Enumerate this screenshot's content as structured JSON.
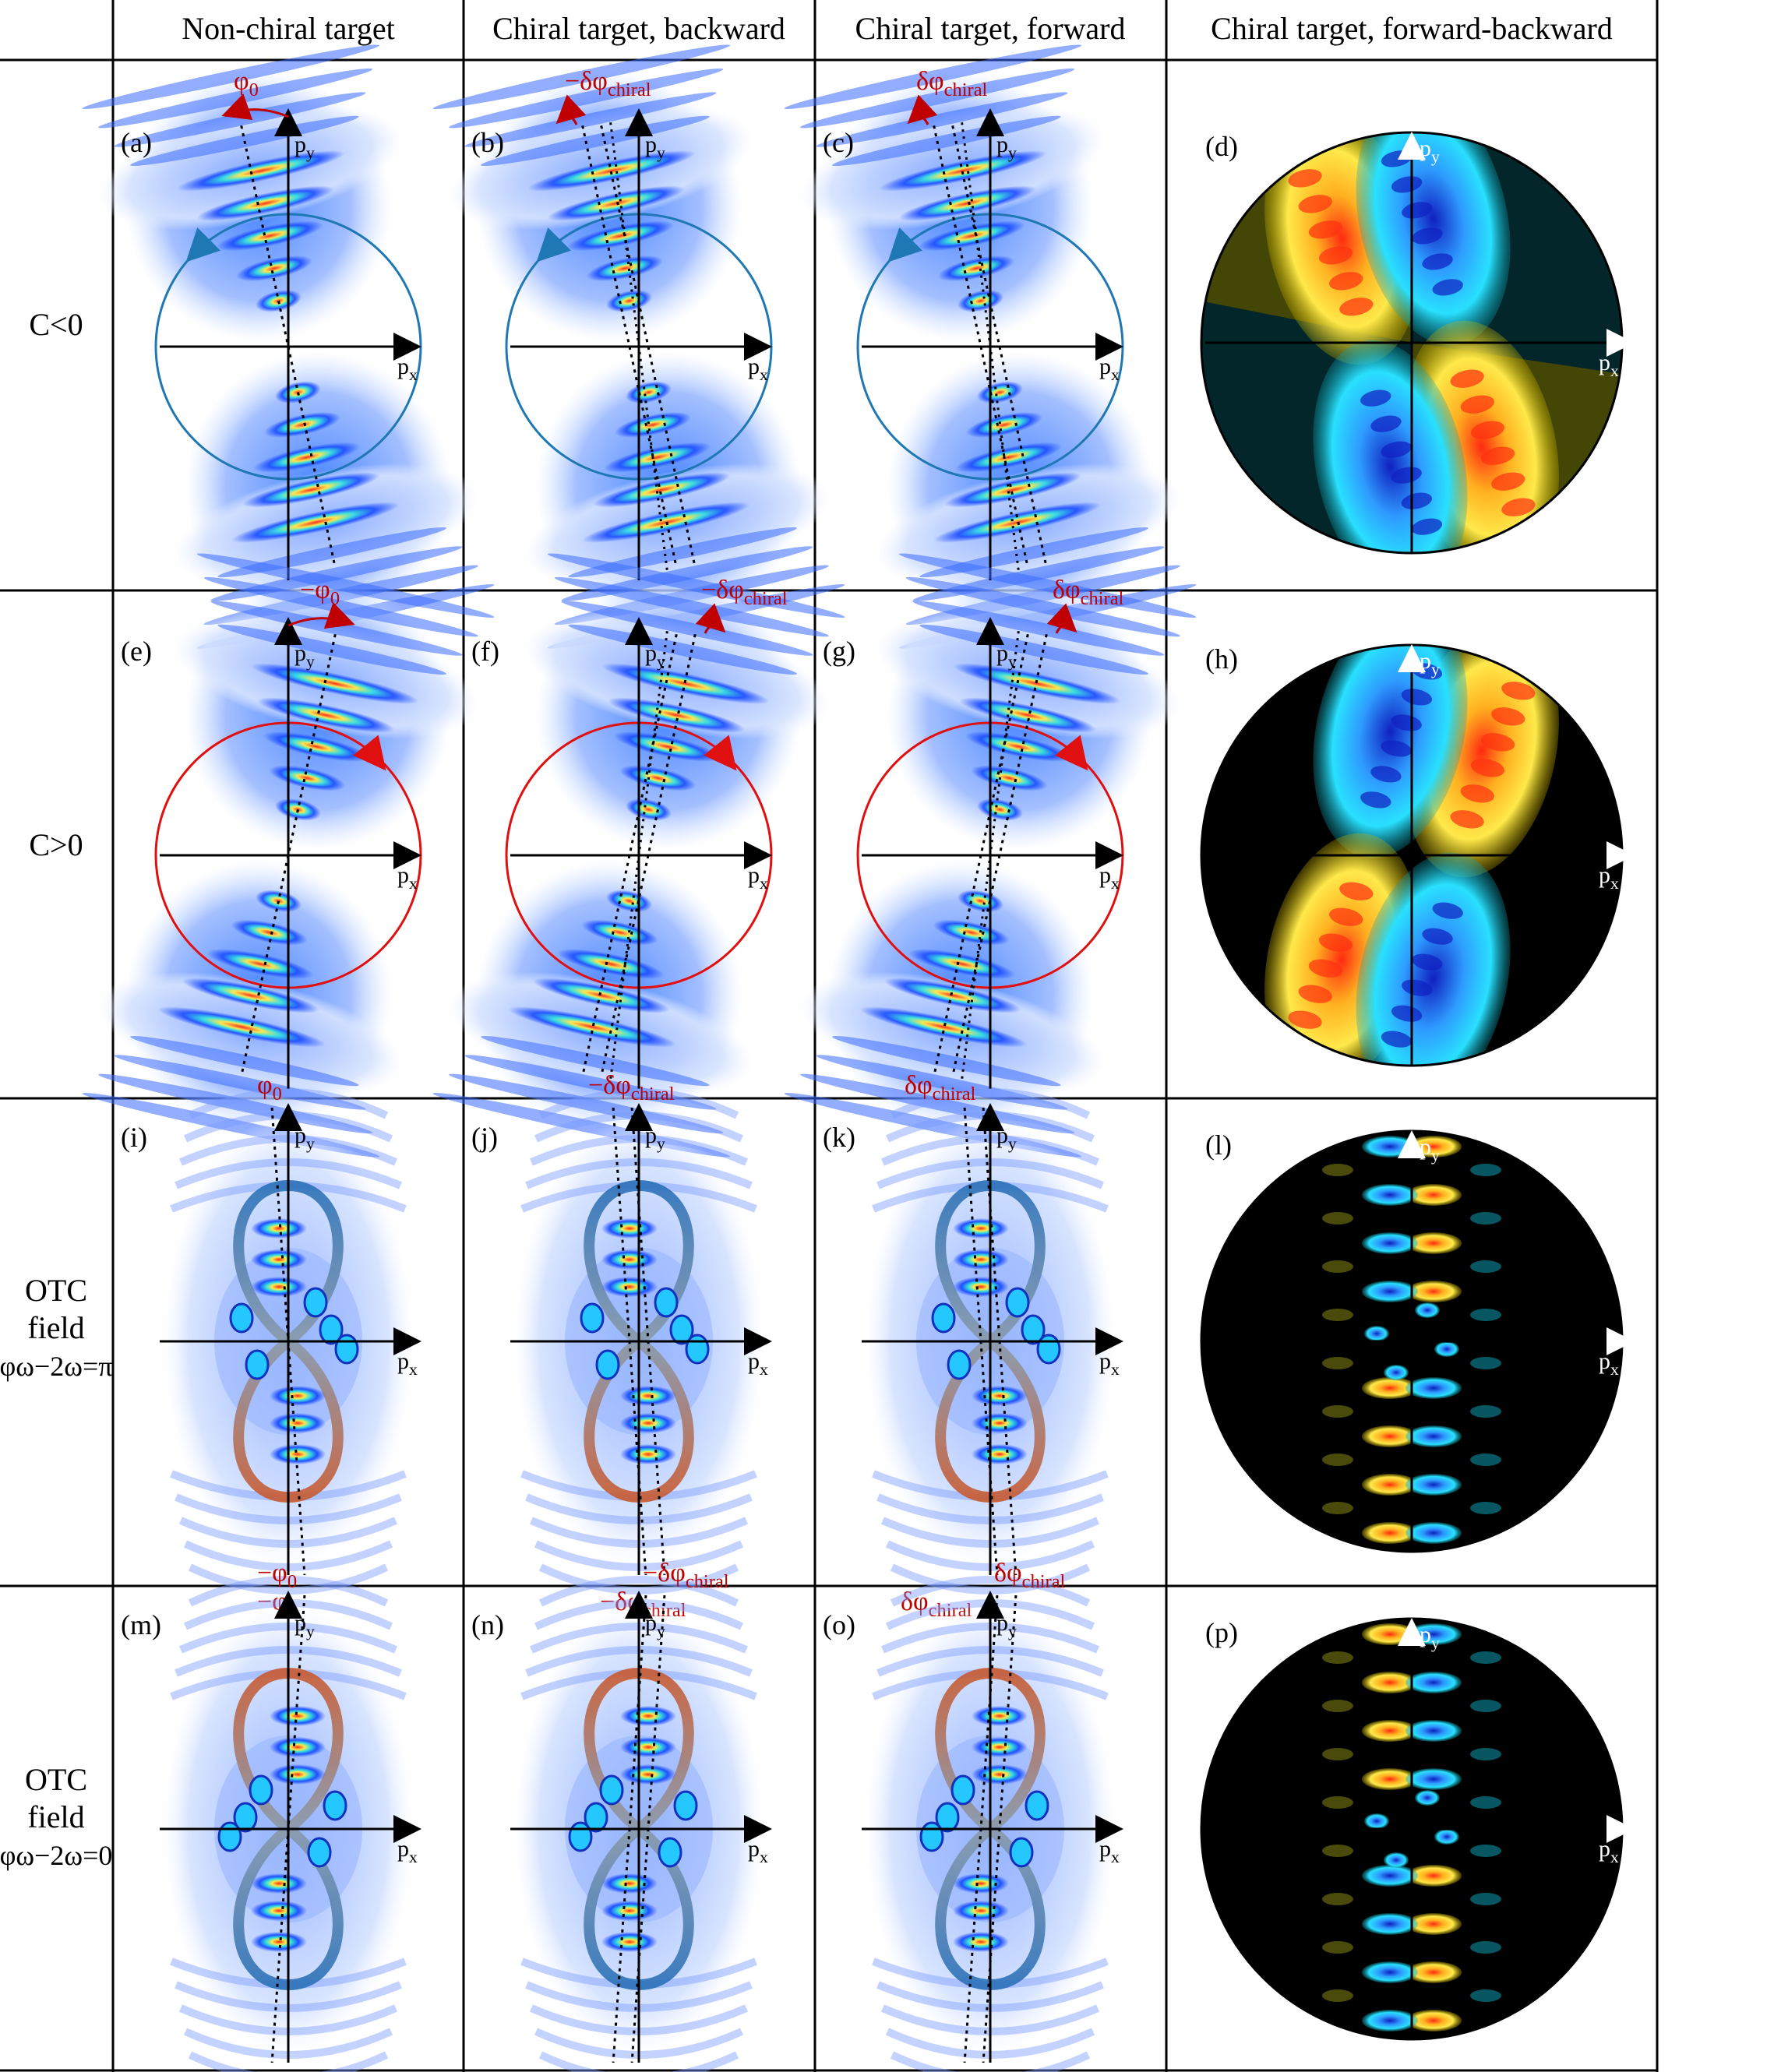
{
  "columns": [
    {
      "label": "Non-chiral target"
    },
    {
      "label": "Chiral target, backward"
    },
    {
      "label": "Chiral target, forward"
    },
    {
      "label": "Chiral target, forward-backward"
    }
  ],
  "rows": [
    {
      "lines": [
        "C<0"
      ]
    },
    {
      "lines": [
        "C>0"
      ]
    },
    {
      "lines": [
        "OTC",
        "field",
        "φω−2ω=π"
      ]
    },
    {
      "lines": [
        "OTC",
        "field",
        "φω−2ω=0"
      ]
    }
  ],
  "axes": {
    "x": "px",
    "y": "py"
  },
  "panels": [
    [
      "(a)",
      "(b)",
      "(c)",
      "(d)"
    ],
    [
      "(e)",
      "(f)",
      "(g)",
      "(h)"
    ],
    [
      "(i)",
      "(j)",
      "(k)",
      "(l)"
    ],
    [
      "(m)",
      "(n)",
      "(o)",
      "(p)"
    ]
  ],
  "angles": {
    "r0": [
      "φ0",
      "−δφchiral",
      "δφchiral"
    ],
    "r1": [
      "−φ0",
      "−δφchiral",
      "δφchiral"
    ],
    "r2_top": [
      "φ0",
      "−δφchiral",
      "δφchiral"
    ],
    "r2_bot": [
      "−φ0",
      "−δφchiral",
      "δφchiral"
    ],
    "r3_top": [
      "−φ0",
      "−δφchiral",
      "δφchiral"
    ],
    "r3_bot": [
      "φ0",
      "−δφchiral",
      "δφchiral"
    ]
  },
  "colors": {
    "lobe_dark": "#0a2fb0",
    "lobe_mid": "#3f7fff",
    "lobe_light": "#bcd2ff",
    "hot": "#ff2a10",
    "yellow": "#ffe94a",
    "cyan": "#29e0ff",
    "circle_blue": "#1f78b4",
    "circle_red": "#e01010",
    "angle_red": "#c00000"
  }
}
